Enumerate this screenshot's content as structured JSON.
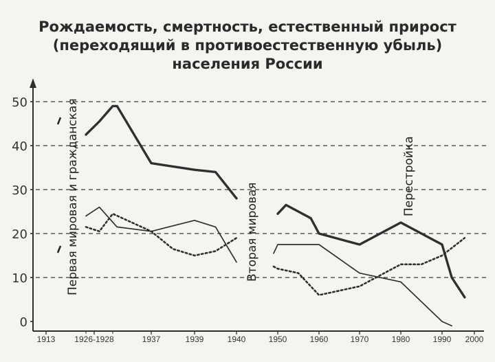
{
  "chart_data": {
    "type": "line",
    "title": [
      "Рождаемость, смертность, естественный прирост",
      "(переходящий в противоестественную убыль)",
      "населения России"
    ],
    "y_ticks": [
      "0",
      "10",
      "20",
      "30",
      "40",
      "50"
    ],
    "ylim": [
      0,
      53
    ],
    "x_tick_labels": [
      "1913",
      "1926-1928",
      "1937",
      "1939",
      "1940",
      "1950",
      "1960",
      "1970",
      "1980",
      "1990",
      "2000"
    ],
    "grid": "horizontal dashed",
    "annotations": [
      {
        "text": "Первая мировая и гражданская"
      },
      {
        "text": "Вторая мировая"
      },
      {
        "text": "Перестройка"
      }
    ],
    "series": [
      {
        "role": "birth_rate",
        "style": "thick",
        "segments": [
          [
            [
              "1926",
              42.5
            ],
            [
              "1927",
              45.5
            ],
            [
              "1928",
              49
            ],
            [
              "1929",
              49
            ],
            [
              "1937",
              36
            ],
            [
              "1939",
              34.5
            ],
            [
              "1939.5",
              34
            ],
            [
              "1940",
              28
            ]
          ],
          [
            [
              "1950",
              24.5
            ],
            [
              "1952",
              26.5
            ],
            [
              "1958",
              23.5
            ],
            [
              "1960",
              20
            ],
            [
              "1970",
              17.5
            ],
            [
              "1975",
              20
            ],
            [
              "1980",
              22.5
            ],
            [
              "1985",
              20
            ],
            [
              "1990",
              17.5
            ],
            [
              "1993",
              10
            ],
            [
              "1997",
              5.5
            ]
          ]
        ]
      },
      {
        "role": "death_rate",
        "style": "thin",
        "segments": [
          [
            [
              "1926",
              24
            ],
            [
              "1927",
              26
            ],
            [
              "1929",
              21.5
            ],
            [
              "1937",
              20.5
            ],
            [
              "1939",
              23
            ],
            [
              "1939.5",
              21.5
            ],
            [
              "1940",
              13.5
            ]
          ],
          [
            [
              "1949",
              15.5
            ],
            [
              "1950",
              17.5
            ],
            [
              "1955",
              17.5
            ],
            [
              "1960",
              17.5
            ],
            [
              "1970",
              11
            ],
            [
              "1980",
              9
            ],
            [
              "1985",
              4.5
            ],
            [
              "1990",
              0
            ],
            [
              "1993",
              -1
            ]
          ]
        ]
      },
      {
        "role": "natural_increase",
        "style": "dotted",
        "segments": [
          [
            [
              "1926",
              21.5
            ],
            [
              "1927",
              20.5
            ],
            [
              "1928",
              24.5
            ],
            [
              "1937",
              20.5
            ],
            [
              "1938",
              16.5
            ],
            [
              "1939",
              15
            ],
            [
              "1939.5",
              16
            ],
            [
              "1940",
              19
            ]
          ],
          [
            [
              "1949",
              12.5
            ],
            [
              "1950",
              12
            ],
            [
              "1955",
              11
            ],
            [
              "1960",
              6
            ],
            [
              "1970",
              8
            ],
            [
              "1980",
              13
            ],
            [
              "1985",
              13
            ],
            [
              "1990",
              15
            ],
            [
              "1997",
              19
            ]
          ]
        ]
      }
    ],
    "colors": {
      "line": "#2f2f2f",
      "grid": "#3a3a3a",
      "background": "#f4f4f1"
    }
  }
}
